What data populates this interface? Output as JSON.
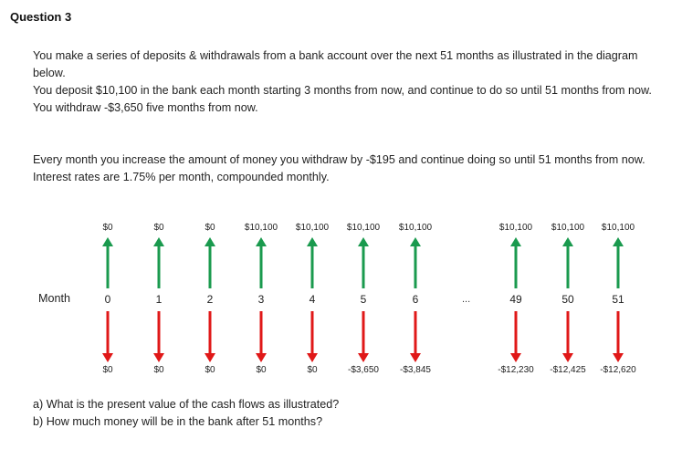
{
  "title": "Question 3",
  "intro": [
    "You make a series of deposits & withdrawals from a bank account over the next 51 months as illustrated in the diagram below.",
    "You deposit $10,100 in the bank each month starting 3 months from now, and continue to do so until 51 months from now.",
    "You withdraw -$3,650 five months from now."
  ],
  "details": [
    "Every month you increase the amount of money you withdraw by -$195 and continue doing so until 51 months from now.",
    "Interest rates are 1.75% per month, compounded monthly."
  ],
  "diagram": {
    "row_label": "Month",
    "ellipsis": "...",
    "colors": {
      "deposit_arrow": "#1a9a4e",
      "withdraw_arrow": "#e01818"
    },
    "columns": [
      {
        "month": "0",
        "deposit": "$0",
        "withdrawal": "$0"
      },
      {
        "month": "1",
        "deposit": "$0",
        "withdrawal": "$0"
      },
      {
        "month": "2",
        "deposit": "$0",
        "withdrawal": "$0"
      },
      {
        "month": "3",
        "deposit": "$10,100",
        "withdrawal": "$0"
      },
      {
        "month": "4",
        "deposit": "$10,100",
        "withdrawal": "$0"
      },
      {
        "month": "5",
        "deposit": "$10,100",
        "withdrawal": "-$3,650"
      },
      {
        "month": "6",
        "deposit": "$10,100",
        "withdrawal": "-$3,845"
      },
      {
        "month": "49",
        "deposit": "$10,100",
        "withdrawal": "-$12,230"
      },
      {
        "month": "50",
        "deposit": "$10,100",
        "withdrawal": "-$12,425"
      },
      {
        "month": "51",
        "deposit": "$10,100",
        "withdrawal": "-$12,620"
      }
    ]
  },
  "questions": [
    "a) What is the present value of the cash flows as illustrated?",
    "b) How much money will be in the bank after 51 months?"
  ]
}
